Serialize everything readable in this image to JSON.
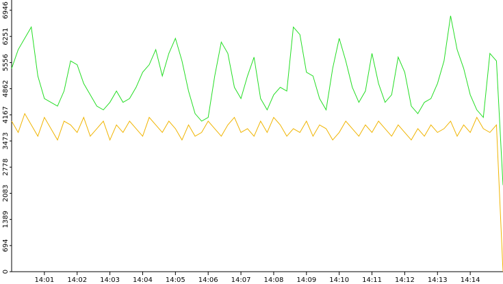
{
  "chart_data": {
    "type": "line",
    "x": [
      0,
      0.2,
      0.4,
      0.6,
      0.8,
      1,
      1.2,
      1.4,
      1.6,
      1.8,
      2,
      2.2,
      2.4,
      2.6,
      2.8,
      3,
      3.2,
      3.4,
      3.6,
      3.8,
      4,
      4.2,
      4.4,
      4.6,
      4.8,
      5,
      5.2,
      5.4,
      5.6,
      5.8,
      6,
      6.2,
      6.4,
      6.6,
      6.8,
      7,
      7.2,
      7.4,
      7.6,
      7.8,
      8,
      8.2,
      8.4,
      8.6,
      8.8,
      9,
      9.2,
      9.4,
      9.6,
      9.8,
      10,
      10.2,
      10.4,
      10.6,
      10.8,
      11,
      11.2,
      11.4,
      11.6,
      11.8,
      12,
      12.2,
      12.4,
      12.6,
      12.8,
      13,
      13.2,
      13.4,
      13.6,
      13.8,
      14,
      14.2,
      14.4,
      14.6,
      14.8,
      15
    ],
    "series": [
      {
        "color": "#22dd22",
        "values": [
          5400,
          5900,
          6200,
          6500,
          5200,
          4600,
          4500,
          4400,
          4800,
          5600,
          5500,
          5000,
          4700,
          4400,
          4300,
          4500,
          4800,
          4500,
          4600,
          4900,
          5300,
          5500,
          5900,
          5200,
          5800,
          6200,
          5600,
          4800,
          4200,
          4000,
          4100,
          5200,
          6100,
          5800,
          4900,
          4600,
          5200,
          5700,
          4600,
          4300,
          4700,
          4900,
          4800,
          6500,
          6300,
          5300,
          5200,
          4600,
          4300,
          5400,
          6200,
          5600,
          4900,
          4500,
          4800,
          5800,
          5000,
          4500,
          4700,
          5700,
          5300,
          4400,
          4200,
          4500,
          4600,
          5000,
          5600,
          6800,
          5900,
          5400,
          4700,
          4300,
          4100,
          5800,
          5600,
          2300
        ]
      },
      {
        "color": "#f0b400",
        "values": [
          4000,
          3700,
          4200,
          3900,
          3600,
          4100,
          3800,
          3500,
          4000,
          3900,
          3700,
          4100,
          3600,
          3800,
          4000,
          3500,
          3900,
          3700,
          4000,
          3800,
          3600,
          4100,
          3900,
          3700,
          4000,
          3800,
          3500,
          3900,
          3600,
          3700,
          4000,
          3800,
          3600,
          3900,
          4100,
          3700,
          3800,
          3600,
          4000,
          3700,
          4100,
          3900,
          3600,
          3800,
          3700,
          4000,
          3600,
          3900,
          3800,
          3500,
          3700,
          4000,
          3800,
          3600,
          3900,
          3700,
          4000,
          3800,
          3600,
          3900,
          3700,
          3500,
          3800,
          3600,
          3900,
          3700,
          3800,
          4000,
          3600,
          3900,
          3700,
          4100,
          3800,
          3700,
          3900,
          0
        ]
      }
    ],
    "xlim": [
      0,
      15
    ],
    "xticks": [
      {
        "value": 1,
        "label": "14:01"
      },
      {
        "value": 2,
        "label": "14:02"
      },
      {
        "value": 3,
        "label": "14:03"
      },
      {
        "value": 4,
        "label": "14:04"
      },
      {
        "value": 5,
        "label": "14:05"
      },
      {
        "value": 6,
        "label": "14:06"
      },
      {
        "value": 7,
        "label": "14:07"
      },
      {
        "value": 8,
        "label": "14:08"
      },
      {
        "value": 9,
        "label": "14:09"
      },
      {
        "value": 10,
        "label": "14:10"
      },
      {
        "value": 11,
        "label": "14:11"
      },
      {
        "value": 12,
        "label": "14:12"
      },
      {
        "value": 13,
        "label": "14:13"
      },
      {
        "value": 14,
        "label": "14:14"
      }
    ],
    "ylim": [
      0,
      7219
    ],
    "yticks": [
      0,
      694,
      1389,
      2083,
      2778,
      3473,
      4167,
      4862,
      5556,
      6251,
      6946
    ]
  }
}
